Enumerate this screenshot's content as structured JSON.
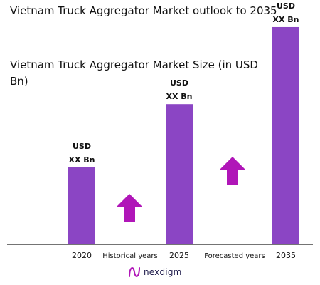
{
  "page": {
    "title": "Vietnam Truck Aggregator Market outlook to 2035"
  },
  "chart_data": {
    "type": "bar",
    "title": "Vietnam Truck Aggregator Market Size (in USD Bn)",
    "categories": [
      "2020",
      "2025",
      "2035"
    ],
    "values": [
      33,
      60,
      93
    ],
    "ylim": [
      0,
      100
    ],
    "grid": false,
    "value_labels": [
      [
        "USD",
        "XX Bn"
      ],
      [
        "USD",
        "XX Bn"
      ],
      [
        "USD",
        "XX Bn"
      ]
    ],
    "period_labels": [
      "Historical years",
      "Forecasted years"
    ],
    "bar_color": "#8b45c4",
    "arrow_color": "#b016b8"
  },
  "brand": {
    "name": "nexdigm",
    "logo_color": "#b016b8"
  }
}
